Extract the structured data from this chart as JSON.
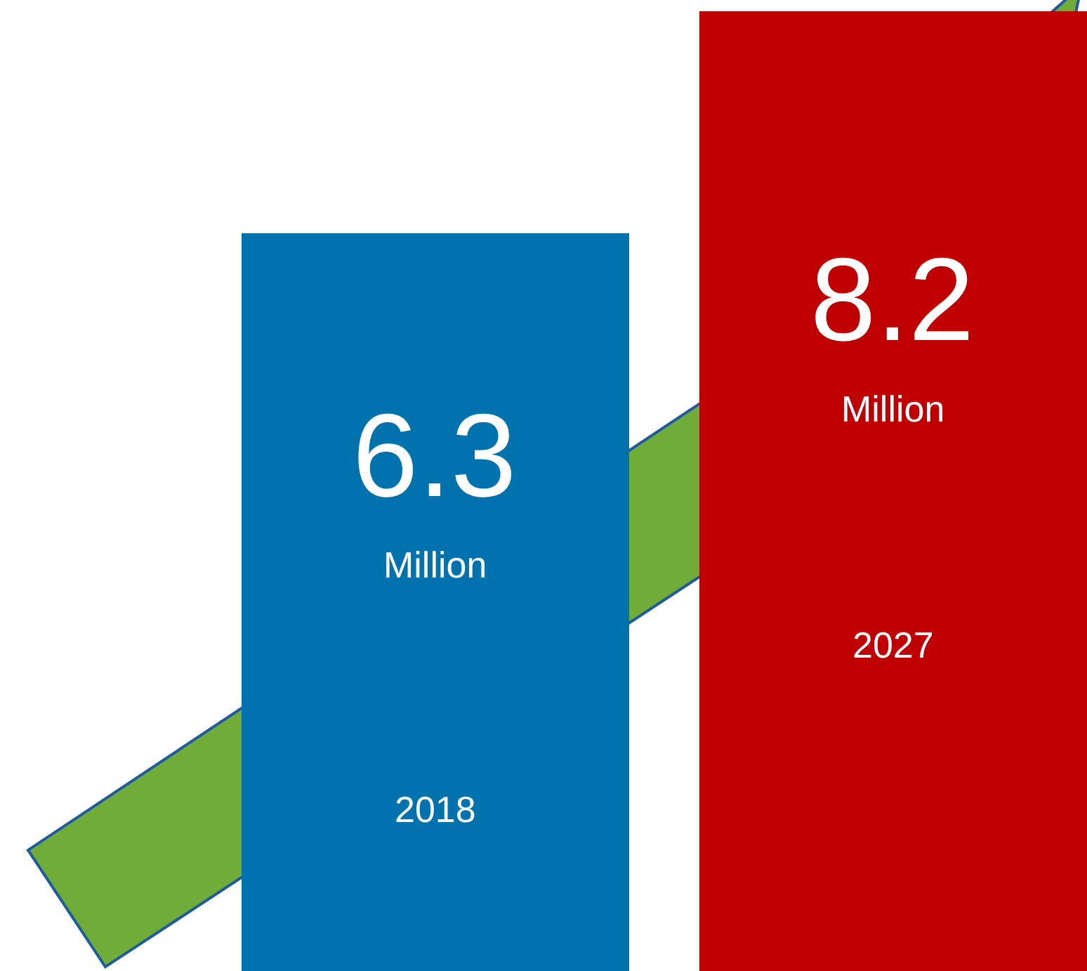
{
  "chart_data": {
    "type": "bar",
    "categories": [
      "2018",
      "2027"
    ],
    "values": [
      6.3,
      8.2
    ],
    "colors": [
      "#0072ae",
      "#c00000"
    ],
    "data_labels": true,
    "tick_labels": false,
    "grid": false,
    "legend": false,
    "annotations": [
      "Million",
      "Million"
    ]
  }
}
